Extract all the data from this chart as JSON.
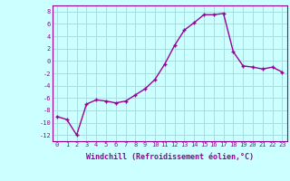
{
  "x": [
    0,
    1,
    2,
    3,
    4,
    5,
    6,
    7,
    8,
    9,
    10,
    11,
    12,
    13,
    14,
    15,
    16,
    17,
    18,
    19,
    20,
    21,
    22,
    23
  ],
  "y": [
    -9,
    -9.5,
    -12,
    -7,
    -6.3,
    -6.5,
    -6.8,
    -6.5,
    -5.5,
    -4.5,
    -3,
    -0.5,
    2.5,
    5,
    6.2,
    7.5,
    7.5,
    7.7,
    1.5,
    -0.8,
    -1.0,
    -1.3,
    -1.0,
    -1.8
  ],
  "line_color": "#990099",
  "marker": "+",
  "markersize": 3,
  "linewidth": 1.0,
  "xlabel": "Windchill (Refroidissement éolien,°C)",
  "xlabel_fontsize": 6,
  "ylabel": "",
  "ylim": [
    -13,
    9
  ],
  "xlim": [
    -0.5,
    23.5
  ],
  "yticks": [
    -12,
    -10,
    -8,
    -6,
    -4,
    -2,
    0,
    2,
    4,
    6,
    8
  ],
  "xticks": [
    0,
    1,
    2,
    3,
    4,
    5,
    6,
    7,
    8,
    9,
    10,
    11,
    12,
    13,
    14,
    15,
    16,
    17,
    18,
    19,
    20,
    21,
    22,
    23
  ],
  "bg_color": "#ccffff",
  "grid_color": "#aadddd",
  "tick_fontsize": 5,
  "title": ""
}
